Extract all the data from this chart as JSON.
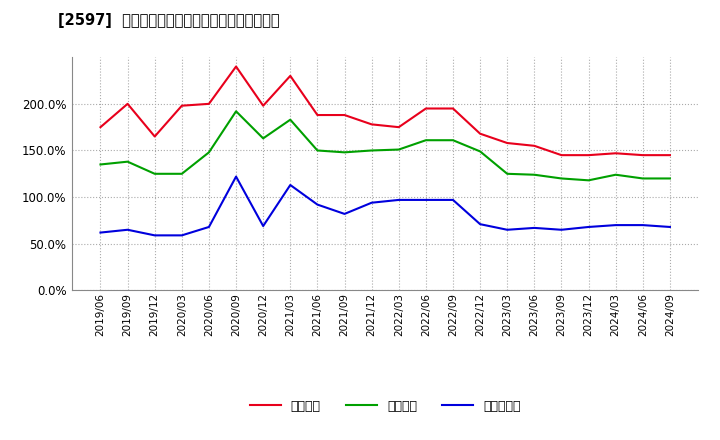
{
  "title": "[2597]  流動比率、当座比率、現預金比率の推移",
  "x_labels": [
    "2019/06",
    "2019/09",
    "2019/12",
    "2020/03",
    "2020/06",
    "2020/09",
    "2020/12",
    "2021/03",
    "2021/06",
    "2021/09",
    "2021/12",
    "2022/03",
    "2022/06",
    "2022/09",
    "2022/12",
    "2023/03",
    "2023/06",
    "2023/09",
    "2023/12",
    "2024/03",
    "2024/06",
    "2024/09"
  ],
  "ryudo": [
    175,
    200,
    165,
    198,
    200,
    240,
    198,
    230,
    188,
    188,
    178,
    175,
    195,
    195,
    168,
    158,
    155,
    145,
    145,
    147,
    145,
    145
  ],
  "toza": [
    135,
    138,
    125,
    125,
    148,
    192,
    163,
    183,
    150,
    148,
    150,
    151,
    161,
    161,
    149,
    125,
    124,
    120,
    118,
    124,
    120,
    120
  ],
  "genyo": [
    62,
    65,
    59,
    59,
    68,
    122,
    69,
    113,
    92,
    82,
    94,
    97,
    97,
    97,
    71,
    65,
    67,
    65,
    68,
    70,
    70,
    68
  ],
  "ryudo_color": "#e8001c",
  "toza_color": "#00a000",
  "genyo_color": "#0000dd",
  "bg_color": "#ffffff",
  "grid_color": "#aaaaaa",
  "ylim": [
    0,
    250
  ],
  "yticks": [
    0,
    50,
    100,
    150,
    200
  ],
  "legend_labels": [
    "流動比率",
    "当座比率",
    "現預金比率"
  ]
}
